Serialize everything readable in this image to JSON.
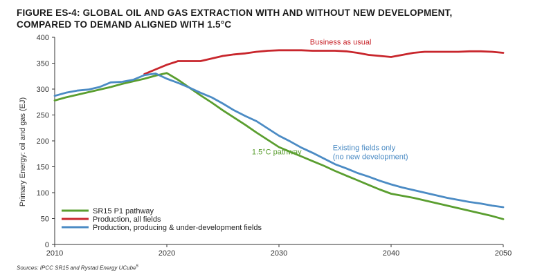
{
  "figure": {
    "title_line1": "FIGURE ES-4: GLOBAL OIL AND GAS EXTRACTION WITH AND WITHOUT NEW DEVELOPMENT,",
    "title_line2": "COMPARED TO DEMAND ALIGNED WITH 1.5°C",
    "source_text": "Sources: IPCC SR15 and Rystad Energy UCube",
    "source_note": "5"
  },
  "chart_data": {
    "type": "line",
    "title": "FIGURE ES-4: GLOBAL OIL AND GAS EXTRACTION WITH AND WITHOUT NEW DEVELOPMENT, COMPARED TO DEMAND ALIGNED WITH 1.5°C",
    "xlabel": "",
    "ylabel": "Primary Energy: oil and gas (EJ)",
    "xlim": [
      2010,
      2050
    ],
    "ylim": [
      0,
      400
    ],
    "x_ticks": [
      2010,
      2020,
      2030,
      2040,
      2050
    ],
    "y_ticks": [
      0,
      50,
      100,
      150,
      200,
      250,
      300,
      350,
      400
    ],
    "grid": false,
    "legend_position": "bottom-left",
    "series": [
      {
        "name": "SR15 P1 pathway",
        "color": "#5a9e2f",
        "annotation": "1.5°C pathway",
        "points": [
          [
            2010,
            278
          ],
          [
            2011,
            284
          ],
          [
            2012,
            289
          ],
          [
            2013,
            294
          ],
          [
            2014,
            299
          ],
          [
            2015,
            304
          ],
          [
            2016,
            310
          ],
          [
            2017,
            315
          ],
          [
            2018,
            320
          ],
          [
            2019,
            326
          ],
          [
            2020,
            331
          ],
          [
            2021,
            318
          ],
          [
            2022,
            303
          ],
          [
            2023,
            288
          ],
          [
            2024,
            274
          ],
          [
            2025,
            259
          ],
          [
            2026,
            245
          ],
          [
            2027,
            231
          ],
          [
            2028,
            216
          ],
          [
            2029,
            202
          ],
          [
            2030,
            188
          ],
          [
            2031,
            179
          ],
          [
            2032,
            170
          ],
          [
            2033,
            161
          ],
          [
            2034,
            152
          ],
          [
            2035,
            142
          ],
          [
            2036,
            133
          ],
          [
            2037,
            124
          ],
          [
            2038,
            115
          ],
          [
            2039,
            106
          ],
          [
            2040,
            98
          ],
          [
            2041,
            94
          ],
          [
            2042,
            90
          ],
          [
            2043,
            85
          ],
          [
            2044,
            80
          ],
          [
            2045,
            75
          ],
          [
            2046,
            70
          ],
          [
            2047,
            65
          ],
          [
            2048,
            60
          ],
          [
            2049,
            55
          ],
          [
            2050,
            49
          ]
        ]
      },
      {
        "name": "Production, all fields",
        "color": "#c8262c",
        "annotation": "Business as usual",
        "points": [
          [
            2018,
            329
          ],
          [
            2019,
            338
          ],
          [
            2020,
            347
          ],
          [
            2021,
            354
          ],
          [
            2022,
            354
          ],
          [
            2023,
            354
          ],
          [
            2024,
            359
          ],
          [
            2025,
            364
          ],
          [
            2026,
            367
          ],
          [
            2027,
            369
          ],
          [
            2028,
            372
          ],
          [
            2029,
            374
          ],
          [
            2030,
            375
          ],
          [
            2031,
            375
          ],
          [
            2032,
            375
          ],
          [
            2033,
            374
          ],
          [
            2034,
            374
          ],
          [
            2035,
            374
          ],
          [
            2036,
            373
          ],
          [
            2037,
            370
          ],
          [
            2038,
            366
          ],
          [
            2039,
            364
          ],
          [
            2040,
            362
          ],
          [
            2041,
            366
          ],
          [
            2042,
            370
          ],
          [
            2043,
            372
          ],
          [
            2044,
            372
          ],
          [
            2045,
            372
          ],
          [
            2046,
            372
          ],
          [
            2047,
            373
          ],
          [
            2048,
            373
          ],
          [
            2049,
            372
          ],
          [
            2050,
            370
          ]
        ]
      },
      {
        "name": "Production, producing & under-development fields",
        "color": "#4b8bc4",
        "annotation_line1": "Existing fields only",
        "annotation_line2": "(no new development)",
        "points": [
          [
            2010,
            287
          ],
          [
            2011,
            293
          ],
          [
            2012,
            297
          ],
          [
            2013,
            299
          ],
          [
            2014,
            304
          ],
          [
            2015,
            313
          ],
          [
            2016,
            314
          ],
          [
            2017,
            318
          ],
          [
            2018,
            327
          ],
          [
            2019,
            330
          ],
          [
            2020,
            320
          ],
          [
            2021,
            312
          ],
          [
            2022,
            303
          ],
          [
            2023,
            293
          ],
          [
            2024,
            284
          ],
          [
            2025,
            272
          ],
          [
            2026,
            259
          ],
          [
            2027,
            248
          ],
          [
            2028,
            238
          ],
          [
            2029,
            224
          ],
          [
            2030,
            210
          ],
          [
            2031,
            199
          ],
          [
            2032,
            187
          ],
          [
            2033,
            177
          ],
          [
            2034,
            166
          ],
          [
            2035,
            155
          ],
          [
            2036,
            147
          ],
          [
            2037,
            138
          ],
          [
            2038,
            131
          ],
          [
            2039,
            123
          ],
          [
            2040,
            116
          ],
          [
            2041,
            110
          ],
          [
            2042,
            105
          ],
          [
            2043,
            100
          ],
          [
            2044,
            95
          ],
          [
            2045,
            90
          ],
          [
            2046,
            86
          ],
          [
            2047,
            82
          ],
          [
            2048,
            79
          ],
          [
            2049,
            75
          ],
          [
            2050,
            72
          ]
        ]
      }
    ]
  }
}
